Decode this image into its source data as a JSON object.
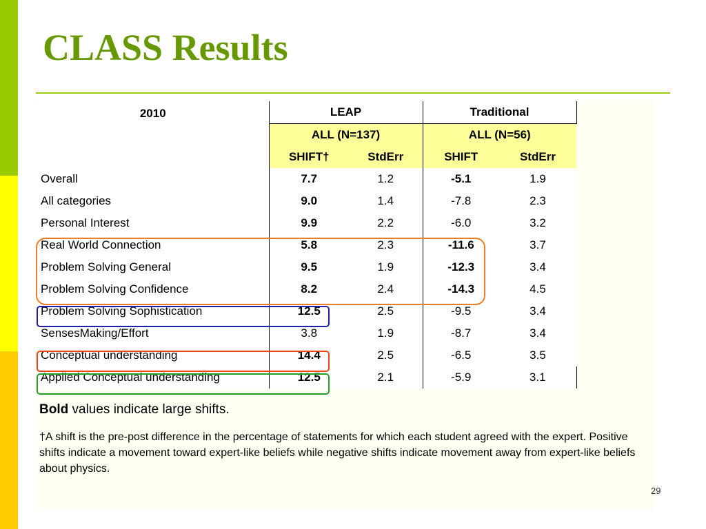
{
  "slide": {
    "title": "CLASS Results",
    "page_number": "29"
  },
  "table": {
    "year": "2010",
    "groups": [
      {
        "name": "LEAP",
        "subgroup": "ALL (N=137)",
        "col_shift": "SHIFT†",
        "col_stderr": "StdErr"
      },
      {
        "name": "Traditional",
        "subgroup": "ALL (N=56)",
        "col_shift": "SHIFT",
        "col_stderr": "StdErr"
      }
    ],
    "rows": [
      {
        "label": "Overall",
        "leap_shift": "7.7",
        "leap_stderr": "1.2",
        "trad_shift": "-5.1",
        "trad_stderr": "1.9"
      },
      {
        "label": "All categories",
        "leap_shift": "9.0",
        "leap_stderr": "1.4",
        "trad_shift": "-7.8",
        "trad_stderr": "2.3"
      },
      {
        "label": "Personal Interest",
        "leap_shift": "9.9",
        "leap_stderr": "2.2",
        "trad_shift": "-6.0",
        "trad_stderr": "3.2"
      },
      {
        "label": "Real World Connection",
        "leap_shift": "5.8",
        "leap_stderr": "2.3",
        "trad_shift": "-11.6",
        "trad_stderr": "3.7"
      },
      {
        "label": "Problem Solving General",
        "leap_shift": "9.5",
        "leap_stderr": "1.9",
        "trad_shift": "-12.3",
        "trad_stderr": "3.4"
      },
      {
        "label": "Problem Solving Confidence",
        "leap_shift": "8.2",
        "leap_stderr": "2.4",
        "trad_shift": "-14.3",
        "trad_stderr": "4.5"
      },
      {
        "label": "Problem Solving Sophistication",
        "leap_shift": "12.5",
        "leap_stderr": "2.5",
        "trad_shift": "-9.5",
        "trad_stderr": "3.4"
      },
      {
        "label": "SensesMaking/Effort",
        "leap_shift": "3.8",
        "leap_stderr": "1.9",
        "trad_shift": "-8.7",
        "trad_stderr": "3.4"
      },
      {
        "label": "Conceptual understanding",
        "leap_shift": "14.4",
        "leap_stderr": "2.5",
        "trad_shift": "-6.5",
        "trad_stderr": "3.5"
      },
      {
        "label": "Applied Conceptual understanding",
        "leap_shift": "12.5",
        "leap_stderr": "2.1",
        "trad_shift": "-5.9",
        "trad_stderr": "3.1"
      }
    ]
  },
  "notes": {
    "bold_word": "Bold",
    "bold_rest": " values indicate large shifts.",
    "footnote": "†A shift is the pre-post difference in the percentage of statements for which each student agreed with the expert.  Positive shifts indicate a movement toward expert-like beliefs while negative shifts indicate movement away from expert-like beliefs about physics."
  },
  "colors": {
    "accent_green": "#99cc00",
    "title_green": "#669900",
    "accent_yellow": "#ffff00",
    "accent_gold": "#ffcc00",
    "header_fill": "#ffff99",
    "highlight_orange": "#ee7d22",
    "highlight_blue": "#1f1fa6",
    "highlight_red": "#ee4411",
    "highlight_green": "#22a022"
  }
}
